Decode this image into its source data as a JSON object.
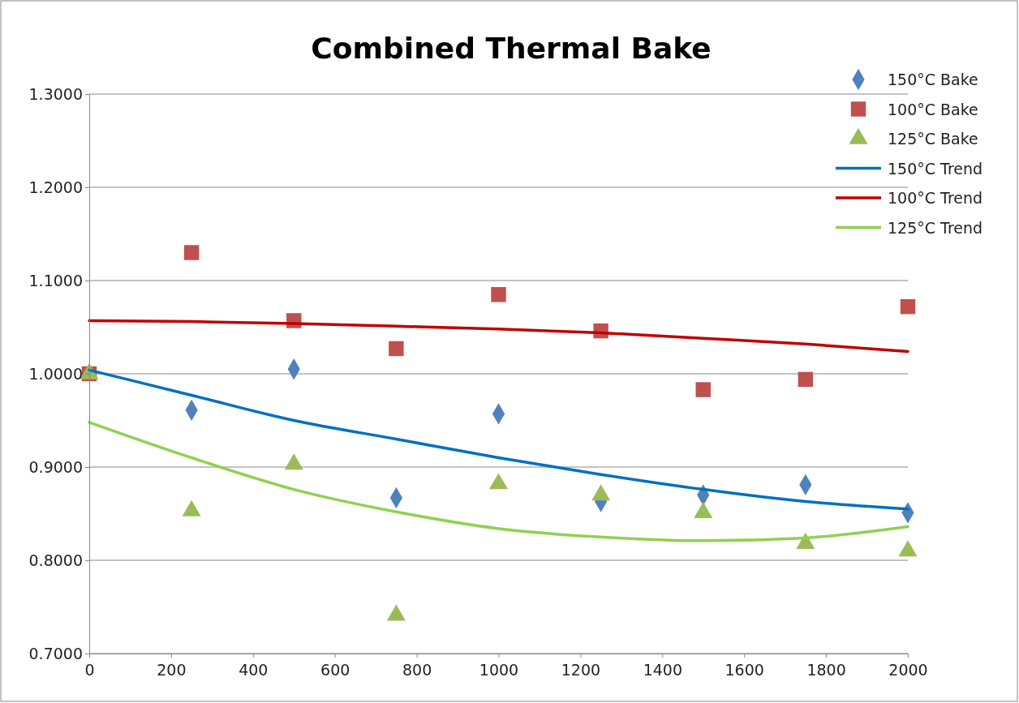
{
  "chart_data": {
    "type": "scatter",
    "title": "Combined Thermal Bake",
    "x": [
      0,
      250,
      500,
      750,
      1000,
      1250,
      1500,
      1750,
      2000
    ],
    "series": [
      {
        "name": "150°C Bake",
        "color": "#4f81bd",
        "marker": "diamond",
        "values": [
          null,
          0.961,
          1.005,
          0.867,
          0.957,
          0.863,
          0.87,
          0.881,
          0.851
        ]
      },
      {
        "name": "100°C Bake",
        "color": "#c0504d",
        "marker": "square",
        "values": [
          1.0,
          1.13,
          1.057,
          1.027,
          1.085,
          1.046,
          0.983,
          0.994,
          1.072
        ]
      },
      {
        "name": "125°C Bake",
        "color": "#9bbb59",
        "marker": "triangle",
        "values": [
          1.0,
          0.853,
          0.903,
          0.741,
          0.882,
          0.87,
          0.851,
          0.818,
          0.81
        ]
      },
      {
        "name": "150°C Trend",
        "type": "line",
        "color": "#0070c0",
        "marker": "none",
        "values": [
          1.004,
          0.977,
          0.95,
          0.93,
          0.91,
          0.892,
          0.876,
          0.863,
          0.855
        ]
      },
      {
        "name": "100°C Trend",
        "type": "line",
        "color": "#c00000",
        "marker": "none",
        "values": [
          1.057,
          1.056,
          1.054,
          1.051,
          1.048,
          1.044,
          1.038,
          1.032,
          1.024
        ]
      },
      {
        "name": "125°C Trend",
        "type": "line",
        "color": "#92d050",
        "marker": "none",
        "values": [
          0.948,
          0.91,
          0.876,
          0.852,
          0.834,
          0.825,
          0.821,
          0.824,
          0.836
        ]
      }
    ],
    "xlim": [
      0,
      2000
    ],
    "xticks": [
      0,
      200,
      400,
      600,
      800,
      1000,
      1200,
      1400,
      1600,
      1800,
      2000
    ],
    "ylim": [
      0.7,
      1.3
    ],
    "yticks": [
      {
        "value": 0.7,
        "label": "0.7000"
      },
      {
        "value": 0.8,
        "label": "0.8000"
      },
      {
        "value": 0.9,
        "label": "0.9000"
      },
      {
        "value": 1.0,
        "label": "1.0000"
      },
      {
        "value": 1.1,
        "label": "1.1000"
      },
      {
        "value": 1.2,
        "label": "1.2000"
      },
      {
        "value": 1.3,
        "label": "1.3000"
      }
    ],
    "grid": "y",
    "legend": "top right"
  }
}
